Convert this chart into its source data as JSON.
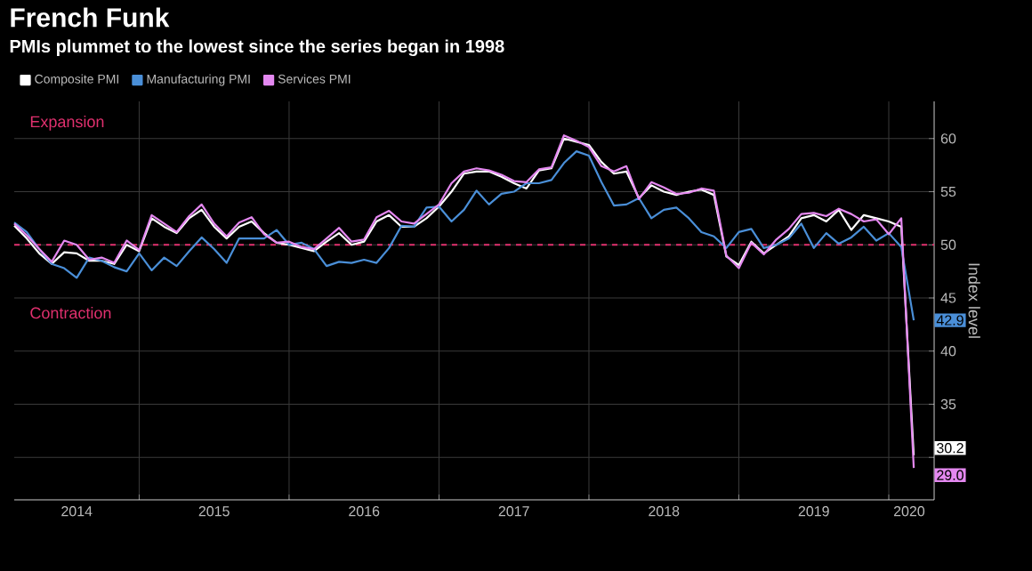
{
  "chart_data": {
    "type": "line",
    "title": "French Funk",
    "subtitle": "PMIs plummet to the lowest since the series began in 1998",
    "ylabel": "Index level",
    "x": [
      "2014-03",
      "2014-04",
      "2014-05",
      "2014-06",
      "2014-07",
      "2014-08",
      "2014-09",
      "2014-10",
      "2014-11",
      "2014-12",
      "2015-01",
      "2015-02",
      "2015-03",
      "2015-04",
      "2015-05",
      "2015-06",
      "2015-07",
      "2015-08",
      "2015-09",
      "2015-10",
      "2015-11",
      "2015-12",
      "2016-01",
      "2016-02",
      "2016-03",
      "2016-04",
      "2016-05",
      "2016-06",
      "2016-07",
      "2016-08",
      "2016-09",
      "2016-10",
      "2016-11",
      "2016-12",
      "2017-01",
      "2017-02",
      "2017-03",
      "2017-04",
      "2017-05",
      "2017-06",
      "2017-07",
      "2017-08",
      "2017-09",
      "2017-10",
      "2017-11",
      "2017-12",
      "2018-01",
      "2018-02",
      "2018-03",
      "2018-04",
      "2018-05",
      "2018-06",
      "2018-07",
      "2018-08",
      "2018-09",
      "2018-10",
      "2018-11",
      "2018-12",
      "2019-01",
      "2019-02",
      "2019-03",
      "2019-04",
      "2019-05",
      "2019-06",
      "2019-07",
      "2019-08",
      "2019-09",
      "2019-10",
      "2019-11",
      "2019-12",
      "2020-01",
      "2020-02",
      "2020-03"
    ],
    "series": [
      {
        "name": "Composite PMI",
        "color": "#ffffff",
        "values": [
          51.8,
          50.6,
          49.2,
          48.2,
          49.3,
          49.2,
          48.5,
          48.5,
          48.2,
          50.0,
          49.4,
          52.5,
          51.7,
          51.1,
          52.5,
          53.3,
          51.7,
          50.6,
          51.7,
          52.2,
          51.1,
          50.2,
          50.0,
          49.7,
          49.4,
          50.3,
          51.1,
          50.0,
          50.3,
          52.2,
          52.8,
          51.7,
          51.7,
          52.5,
          53.6,
          55.0,
          56.7,
          56.9,
          56.9,
          56.4,
          55.8,
          55.3,
          57.0,
          57.2,
          60.0,
          59.7,
          59.4,
          57.8,
          56.7,
          56.9,
          54.4,
          55.6,
          55.0,
          54.7,
          55.0,
          55.2,
          54.7,
          48.9,
          48.1,
          50.3,
          49.2,
          50.0,
          50.8,
          52.5,
          52.8,
          52.2,
          53.3,
          51.4,
          52.8,
          52.5,
          52.2,
          51.7,
          30.2
        ],
        "value_labels": [
          null,
          null,
          null,
          null,
          null,
          null,
          null,
          null,
          null,
          null,
          null,
          null,
          null,
          null,
          null,
          null,
          null,
          null,
          null,
          null,
          null,
          null,
          null,
          null,
          null,
          null,
          null,
          null,
          null,
          null,
          null,
          null,
          null,
          null,
          null,
          null,
          null,
          null,
          null,
          null,
          null,
          null,
          null,
          null,
          null,
          null,
          null,
          null,
          null,
          null,
          null,
          null,
          null,
          null,
          null,
          null,
          null,
          null,
          null,
          null,
          null,
          null,
          null,
          null,
          null,
          null,
          null,
          null,
          null,
          null,
          null,
          null,
          "30.2"
        ]
      },
      {
        "name": "Manufacturing PMI",
        "color": "#4a8fd8",
        "values": [
          52.1,
          51.2,
          49.6,
          48.2,
          47.8,
          46.9,
          48.8,
          48.5,
          47.9,
          47.5,
          49.2,
          47.6,
          48.8,
          48.0,
          49.4,
          50.7,
          49.6,
          48.3,
          50.6,
          50.6,
          50.6,
          51.4,
          50.0,
          50.2,
          49.6,
          48.0,
          48.4,
          48.3,
          48.6,
          48.3,
          49.7,
          51.8,
          51.7,
          53.5,
          53.6,
          52.2,
          53.3,
          55.1,
          53.8,
          54.8,
          55.0,
          55.8,
          55.8,
          56.1,
          57.7,
          58.8,
          58.4,
          55.9,
          53.7,
          53.8,
          54.4,
          52.5,
          53.3,
          53.5,
          52.5,
          51.2,
          50.8,
          49.7,
          51.2,
          51.5,
          49.7,
          50.0,
          50.6,
          52.0,
          49.7,
          51.1,
          50.1,
          50.7,
          51.7,
          50.4,
          51.1,
          49.8,
          42.9
        ],
        "value_labels": [
          null,
          null,
          null,
          null,
          null,
          null,
          null,
          null,
          null,
          null,
          null,
          null,
          null,
          null,
          null,
          null,
          null,
          null,
          null,
          null,
          null,
          null,
          null,
          null,
          null,
          null,
          null,
          null,
          null,
          null,
          null,
          null,
          null,
          null,
          null,
          null,
          null,
          null,
          null,
          null,
          null,
          null,
          null,
          null,
          null,
          null,
          null,
          null,
          null,
          null,
          null,
          null,
          null,
          null,
          null,
          null,
          null,
          null,
          null,
          null,
          null,
          null,
          null,
          null,
          null,
          null,
          null,
          null,
          null,
          null,
          null,
          null,
          "42.9"
        ]
      },
      {
        "name": "Services PMI",
        "color": "#e488f0",
        "values": [
          52.0,
          50.9,
          49.6,
          48.4,
          50.4,
          50.0,
          48.6,
          48.8,
          48.3,
          50.4,
          49.5,
          52.8,
          52.0,
          51.2,
          52.7,
          53.8,
          52.0,
          50.8,
          52.1,
          52.6,
          51.0,
          50.2,
          50.3,
          49.8,
          49.6,
          50.6,
          51.6,
          50.3,
          50.5,
          52.6,
          53.2,
          52.2,
          52.0,
          52.9,
          53.8,
          55.8,
          56.9,
          57.2,
          57.0,
          56.6,
          56.0,
          55.9,
          57.1,
          57.3,
          60.3,
          59.8,
          59.2,
          57.4,
          56.9,
          57.4,
          54.3,
          55.9,
          55.4,
          54.8,
          54.9,
          55.3,
          55.1,
          49.0,
          47.8,
          50.2,
          49.1,
          50.5,
          51.5,
          52.9,
          53.0,
          52.7,
          53.4,
          52.9,
          52.2,
          52.4,
          51.0,
          52.5,
          29.0
        ],
        "value_labels": [
          null,
          null,
          null,
          null,
          null,
          null,
          null,
          null,
          null,
          null,
          null,
          null,
          null,
          null,
          null,
          null,
          null,
          null,
          null,
          null,
          null,
          null,
          null,
          null,
          null,
          null,
          null,
          null,
          null,
          null,
          null,
          null,
          null,
          null,
          null,
          null,
          null,
          null,
          null,
          null,
          null,
          null,
          null,
          null,
          null,
          null,
          null,
          null,
          null,
          null,
          null,
          null,
          null,
          null,
          null,
          null,
          null,
          null,
          null,
          null,
          null,
          null,
          null,
          null,
          null,
          null,
          null,
          null,
          null,
          null,
          null,
          null,
          "29.0"
        ]
      }
    ],
    "xlim": [
      "2014-03",
      "2020-04-20"
    ],
    "xticks": [
      {
        "value": "2014-08",
        "label": "2014"
      },
      {
        "value": "2015-01",
        "label": null
      },
      {
        "value": "2015-07",
        "label": "2015"
      },
      {
        "value": "2016-01",
        "label": null
      },
      {
        "value": "2016-07",
        "label": "2016"
      },
      {
        "value": "2017-01",
        "label": null
      },
      {
        "value": "2017-07",
        "label": "2017"
      },
      {
        "value": "2018-01",
        "label": null
      },
      {
        "value": "2018-07",
        "label": "2018"
      },
      {
        "value": "2019-01",
        "label": null
      },
      {
        "value": "2019-07",
        "label": "2019"
      },
      {
        "value": "2020-01",
        "label": null
      },
      {
        "value": "2020-02-20",
        "label": "2020"
      }
    ],
    "ylim": [
      26,
      63.5
    ],
    "yticks": [
      {
        "value": 30,
        "label": null
      },
      35,
      40,
      45,
      50,
      55,
      60
    ],
    "ref_lines": [
      {
        "axis": "y",
        "value": 50,
        "color": "#e0306e",
        "line_style": "dashed"
      }
    ],
    "annotations": [
      "Expansion",
      "Contraction"
    ],
    "grid": true,
    "legend": "top left",
    "marker": "none",
    "line_style": "solid"
  }
}
